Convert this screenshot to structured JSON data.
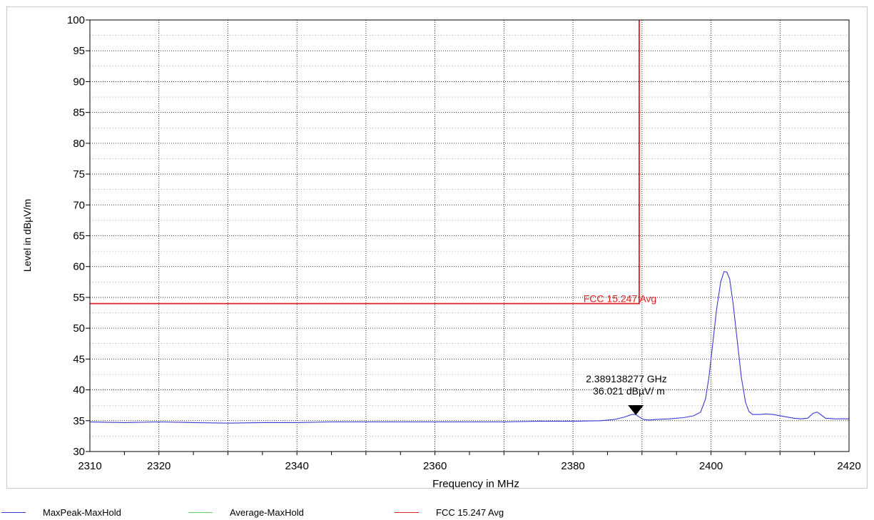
{
  "chart_data": {
    "type": "line",
    "title": "",
    "xlabel": "Frequency in MHz",
    "ylabel": "Level in dBµV/m",
    "xlim": [
      2310,
      2420
    ],
    "ylim": [
      30,
      100
    ],
    "x_ticks": [
      2310,
      2320,
      2340,
      2360,
      2380,
      2400,
      2420
    ],
    "y_ticks": [
      30,
      35,
      40,
      45,
      50,
      55,
      60,
      65,
      70,
      75,
      80,
      85,
      90,
      95,
      100
    ],
    "grid": true,
    "legend_position": "bottom",
    "series": [
      {
        "name": "MaxPeak-MaxHold",
        "color": "#3b3bd6",
        "x": [
          2310,
          2315,
          2320,
          2325,
          2330,
          2335,
          2340,
          2345,
          2350,
          2355,
          2360,
          2365,
          2370,
          2375,
          2380,
          2384,
          2386,
          2387.5,
          2388.5,
          2389.1,
          2389.6,
          2390.2,
          2391,
          2392,
          2394,
          2396,
          2397.5,
          2398.5,
          2399.2,
          2399.7,
          2400.2,
          2400.8,
          2401.4,
          2401.9,
          2402.3,
          2402.7,
          2403.2,
          2403.8,
          2404.4,
          2405,
          2405.5,
          2406,
          2407,
          2408,
          2409,
          2410,
          2411,
          2412,
          2413,
          2414,
          2414.8,
          2415.4,
          2416,
          2416.6,
          2418,
          2420
        ],
        "values": [
          34.8,
          34.7,
          34.8,
          34.7,
          34.6,
          34.7,
          34.7,
          34.8,
          34.8,
          34.8,
          34.8,
          34.8,
          34.8,
          34.9,
          34.9,
          35.0,
          35.2,
          35.6,
          36.0,
          36.0,
          35.6,
          35.2,
          35.1,
          35.2,
          35.3,
          35.5,
          35.8,
          36.4,
          38.5,
          42.0,
          47.0,
          53.0,
          57.5,
          59.2,
          59.1,
          58.0,
          54.0,
          48.0,
          42.0,
          38.0,
          36.5,
          36.0,
          36.0,
          36.1,
          36.0,
          35.8,
          35.6,
          35.4,
          35.3,
          35.4,
          36.2,
          36.4,
          35.9,
          35.4,
          35.3,
          35.3
        ]
      },
      {
        "name": "Average-MaxHold",
        "color": "#5cd65c",
        "x": [],
        "values": []
      },
      {
        "name": "FCC 15.247 Avg",
        "color": "#e02020",
        "x": [
          2310,
          2389.6,
          2389.6
        ],
        "values": [
          54,
          54,
          100
        ]
      }
    ],
    "annotations": [
      {
        "type": "limit-label",
        "text": "FCC 15.247 Avg",
        "x": 2381,
        "y": 54,
        "color": "#e02020"
      },
      {
        "type": "marker",
        "x": 2389.1,
        "y": 36.021,
        "line1": "2.389138277 GHz",
        "line2": "36.021 dBµV/ m"
      }
    ]
  }
}
